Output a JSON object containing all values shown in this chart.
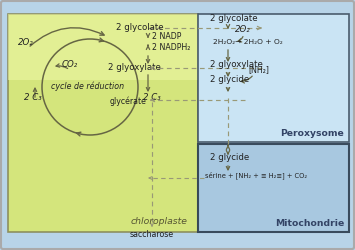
{
  "fig_width": 3.55,
  "fig_height": 2.5,
  "dpi": 100,
  "bg_outer": "#b8d4e8",
  "bg_chloroplast": "#dde87a",
  "bg_peroxisome": "#cce5f5",
  "bg_mitochondrie": "#a8c8e0",
  "arrow_color": "#666644",
  "dashed_color": "#999977",
  "text_color": "#222222",
  "title_chloroplaste": "chloroplaste",
  "title_peroxisome": "Peroxysome",
  "title_mitochondrie": "Mitochondrie",
  "label_saccharose": "saccharose",
  "lbl_2o2_left": "2O₂",
  "lbl_co2": "CO₂",
  "lbl_cycle": "cycle de réduction",
  "lbl_2c3_left": "2 C₃",
  "lbl_2c3_right": "2 C₃",
  "lbl_2glycolate_left": "2 glycolate",
  "lbl_2nadp": "2 NADP",
  "lbl_2nadph2": "2 NADPH₂",
  "lbl_2glyoxylate_left": "2 glyoxylate",
  "lbl_2glycolate_right": "2 glycolate",
  "lbl_2o2_right": "2O₂",
  "lbl_2h2o2": "2H₂O₂→ 2H₂O + O₂",
  "lbl_2glyoxylate_right": "2 glyoxylate",
  "lbl_nh2": "[NH₂]",
  "lbl_2glycide_perox": "2 glycide",
  "lbl_glycerate": "glycérate",
  "lbl_2glycide_mito": "2 glycide",
  "lbl_serine": "sérine + [NH₂ + ≡ H₂≡] + CO₂"
}
